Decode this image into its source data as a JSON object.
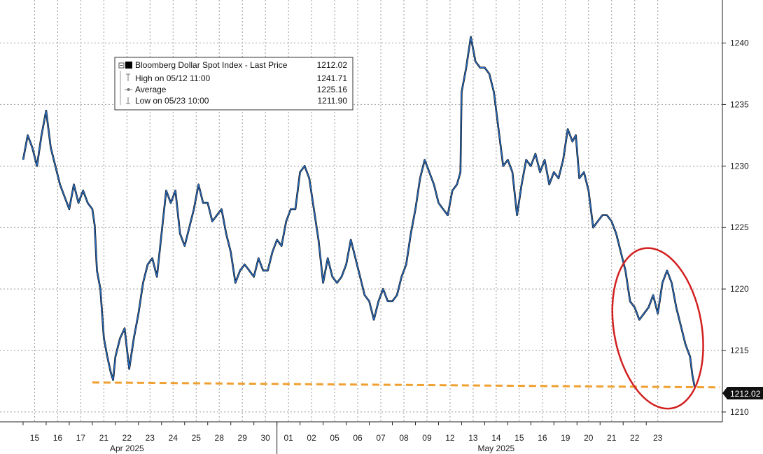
{
  "chart_data": {
    "type": "line",
    "series": [
      {
        "name": "Bloomberg Dollar Spot Index - Last Price",
        "color": "#2a6fc4",
        "values": [
          [
            0,
            1230.5
          ],
          [
            0.2,
            1232.5
          ],
          [
            0.4,
            1231.5
          ],
          [
            0.6,
            1230.0
          ],
          [
            0.8,
            1232.5
          ],
          [
            1.0,
            1234.5
          ],
          [
            1.2,
            1231.5
          ],
          [
            1.4,
            1230.0
          ],
          [
            1.6,
            1228.5
          ],
          [
            1.8,
            1227.5
          ],
          [
            2.0,
            1226.5
          ],
          [
            2.2,
            1228.5
          ],
          [
            2.4,
            1227.0
          ],
          [
            2.6,
            1228.0
          ],
          [
            2.8,
            1227.0
          ],
          [
            3.0,
            1226.5
          ],
          [
            3.1,
            1225.2
          ],
          [
            3.2,
            1221.5
          ],
          [
            3.35,
            1220.0
          ],
          [
            3.5,
            1216.0
          ],
          [
            3.65,
            1214.5
          ],
          [
            3.8,
            1213.2
          ],
          [
            3.9,
            1212.6
          ],
          [
            4.0,
            1214.5
          ],
          [
            4.2,
            1216.0
          ],
          [
            4.4,
            1216.8
          ],
          [
            4.6,
            1213.5
          ],
          [
            4.8,
            1216.0
          ],
          [
            5.0,
            1218.0
          ],
          [
            5.2,
            1220.5
          ],
          [
            5.4,
            1222.0
          ],
          [
            5.6,
            1222.5
          ],
          [
            5.8,
            1221.0
          ],
          [
            6.0,
            1224.5
          ],
          [
            6.2,
            1228.0
          ],
          [
            6.4,
            1227.0
          ],
          [
            6.6,
            1228.0
          ],
          [
            6.8,
            1224.5
          ],
          [
            7.0,
            1223.5
          ],
          [
            7.2,
            1225.0
          ],
          [
            7.4,
            1226.5
          ],
          [
            7.6,
            1228.5
          ],
          [
            7.8,
            1227.0
          ],
          [
            8.0,
            1227.0
          ],
          [
            8.2,
            1225.5
          ],
          [
            8.4,
            1226.0
          ],
          [
            8.6,
            1226.5
          ],
          [
            8.8,
            1224.5
          ],
          [
            9.0,
            1223.0
          ],
          [
            9.2,
            1220.5
          ],
          [
            9.4,
            1221.5
          ],
          [
            9.6,
            1222.0
          ],
          [
            9.8,
            1221.5
          ],
          [
            10.0,
            1221.0
          ],
          [
            10.2,
            1222.5
          ],
          [
            10.4,
            1221.5
          ],
          [
            10.6,
            1221.5
          ],
          [
            10.8,
            1223.0
          ],
          [
            11.0,
            1224.0
          ],
          [
            11.2,
            1223.5
          ],
          [
            11.4,
            1225.5
          ],
          [
            11.6,
            1226.5
          ],
          [
            11.8,
            1226.5
          ],
          [
            12.0,
            1229.5
          ],
          [
            12.2,
            1230.0
          ],
          [
            12.4,
            1229.0
          ],
          [
            12.6,
            1226.5
          ],
          [
            12.8,
            1224.0
          ],
          [
            13.0,
            1220.5
          ],
          [
            13.2,
            1222.5
          ],
          [
            13.4,
            1221.0
          ],
          [
            13.6,
            1220.5
          ],
          [
            13.8,
            1221.0
          ],
          [
            14.0,
            1222.0
          ],
          [
            14.2,
            1224.0
          ],
          [
            14.4,
            1222.5
          ],
          [
            14.6,
            1221.0
          ],
          [
            14.8,
            1219.5
          ],
          [
            15.0,
            1219.0
          ],
          [
            15.2,
            1217.5
          ],
          [
            15.4,
            1219.0
          ],
          [
            15.6,
            1220.0
          ],
          [
            15.8,
            1219.0
          ],
          [
            16.0,
            1219.0
          ],
          [
            16.2,
            1219.5
          ],
          [
            16.4,
            1221.0
          ],
          [
            16.6,
            1222.0
          ],
          [
            16.8,
            1224.5
          ],
          [
            17.0,
            1226.5
          ],
          [
            17.2,
            1229.0
          ],
          [
            17.4,
            1230.5
          ],
          [
            17.6,
            1229.5
          ],
          [
            17.8,
            1228.5
          ],
          [
            18.0,
            1227.0
          ],
          [
            18.2,
            1226.5
          ],
          [
            18.4,
            1226.0
          ],
          [
            18.6,
            1228.0
          ],
          [
            18.8,
            1228.5
          ],
          [
            18.95,
            1229.5
          ],
          [
            19.0,
            1236.0
          ],
          [
            19.2,
            1238.0
          ],
          [
            19.4,
            1240.5
          ],
          [
            19.6,
            1238.5
          ],
          [
            19.8,
            1238.0
          ],
          [
            20.0,
            1238.0
          ],
          [
            20.2,
            1237.5
          ],
          [
            20.4,
            1236.0
          ],
          [
            20.6,
            1233.0
          ],
          [
            20.8,
            1230.0
          ],
          [
            21.0,
            1230.5
          ],
          [
            21.2,
            1229.5
          ],
          [
            21.4,
            1226.0
          ],
          [
            21.6,
            1228.5
          ],
          [
            21.8,
            1230.5
          ],
          [
            22.0,
            1230.0
          ],
          [
            22.2,
            1231.0
          ],
          [
            22.4,
            1229.5
          ],
          [
            22.6,
            1230.5
          ],
          [
            22.8,
            1228.5
          ],
          [
            23.0,
            1229.5
          ],
          [
            23.2,
            1229.0
          ],
          [
            23.4,
            1230.5
          ],
          [
            23.6,
            1233.0
          ],
          [
            23.8,
            1232.0
          ],
          [
            23.95,
            1232.5
          ],
          [
            24.1,
            1229.0
          ],
          [
            24.3,
            1229.5
          ],
          [
            24.5,
            1228.0
          ],
          [
            24.7,
            1225.0
          ],
          [
            24.9,
            1225.5
          ],
          [
            25.1,
            1226.0
          ],
          [
            25.3,
            1226.0
          ],
          [
            25.5,
            1225.5
          ],
          [
            25.7,
            1224.5
          ],
          [
            25.9,
            1223.0
          ],
          [
            26.1,
            1221.5
          ],
          [
            26.3,
            1219.0
          ],
          [
            26.5,
            1218.5
          ],
          [
            26.7,
            1217.5
          ],
          [
            26.9,
            1218.0
          ],
          [
            27.1,
            1218.5
          ],
          [
            27.3,
            1219.5
          ],
          [
            27.5,
            1218.0
          ],
          [
            27.7,
            1220.5
          ],
          [
            27.9,
            1221.5
          ],
          [
            28.1,
            1220.5
          ],
          [
            28.3,
            1218.5
          ],
          [
            28.5,
            1217.0
          ],
          [
            28.7,
            1215.5
          ],
          [
            28.9,
            1214.5
          ],
          [
            29.0,
            1213.0
          ],
          [
            29.1,
            1212.02
          ]
        ]
      }
    ],
    "x_tick_labels": [
      "15",
      "16",
      "17",
      "21",
      "22",
      "23",
      "24",
      "25",
      "28",
      "29",
      "30",
      "01",
      "02",
      "05",
      "06",
      "07",
      "08",
      "09",
      "12",
      "13",
      "14",
      "15",
      "16",
      "19",
      "20",
      "21",
      "22",
      "23"
    ],
    "month_labels": [
      "Apr 2025",
      "May 2025"
    ],
    "y_ticks": [
      1210,
      1215,
      1220,
      1225,
      1230,
      1235,
      1240
    ],
    "ylim": [
      1209.2,
      1243.5
    ],
    "xlim": [
      -1,
      30.3
    ],
    "grid": true,
    "legend": {
      "placement": "top-left",
      "title": "Bloomberg Dollar Spot Index - Last Price",
      "title_value": "1212.02",
      "rows": [
        {
          "label": "High on 05/12 11:00",
          "value": "1241.71"
        },
        {
          "label": "Average",
          "value": "1225.16"
        },
        {
          "label": "Low on 05/23 10:00",
          "value": "1211.90"
        }
      ]
    },
    "last_price_label": "1212.02",
    "reference_line": {
      "x_from": 3.0,
      "x_to": 30.2,
      "y_start": 1212.4,
      "y_end": 1212.0,
      "color": "#f0a030"
    },
    "annotation_ellipse": {
      "cx": 27.5,
      "cy": 1216.8,
      "rx": 1.9,
      "ry": 6.6,
      "rotation_deg": -10,
      "color": "#d21f1f"
    }
  }
}
